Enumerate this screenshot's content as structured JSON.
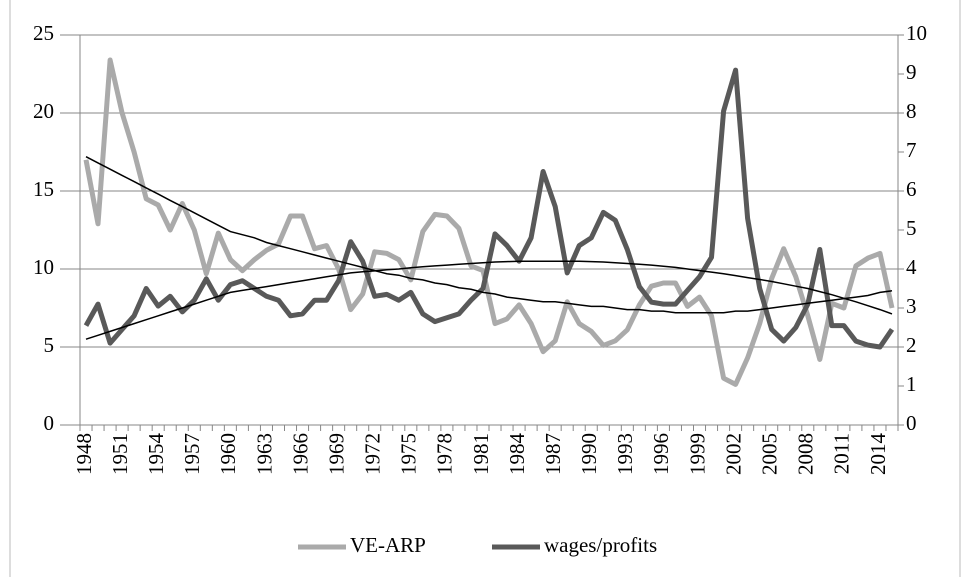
{
  "chart_data": {
    "type": "line",
    "categories": [
      "1948",
      null,
      null,
      "1951",
      null,
      null,
      "1954",
      null,
      null,
      "1957",
      null,
      null,
      "1960",
      null,
      null,
      "1963",
      null,
      null,
      "1966",
      null,
      null,
      "1969",
      null,
      null,
      "1972",
      null,
      null,
      "1975",
      null,
      null,
      "1978",
      null,
      null,
      "1981",
      null,
      null,
      "1984",
      null,
      null,
      "1987",
      null,
      null,
      "1990",
      null,
      null,
      "1993",
      null,
      null,
      "1996",
      null,
      null,
      "1999",
      null,
      null,
      "2002",
      null,
      null,
      "2005",
      null,
      null,
      "2008",
      null,
      null,
      "2011",
      null,
      null,
      "2014",
      null
    ],
    "series": [
      {
        "name": "VE-ARP",
        "color": "#aaaaaa",
        "values": [
          17,
          12.9,
          23.4,
          20,
          17.5,
          14.5,
          14.1,
          12.5,
          14.2,
          12.5,
          9.7,
          12.3,
          10.6,
          9.9,
          10.6,
          11.2,
          11.6,
          13.4,
          13.4,
          11.3,
          11.5,
          10,
          7.4,
          8.4,
          11.1,
          11,
          10.6,
          9.3,
          12.4,
          13.5,
          13.4,
          12.6,
          10.2,
          9.9,
          6.5,
          6.8,
          7.7,
          6.5,
          4.7,
          5.4,
          7.9,
          6.5,
          6,
          5.1,
          5.4,
          6.1,
          7.7,
          8.9,
          9.1,
          9.1,
          7.6,
          8.2,
          7,
          3,
          2.6,
          4.3,
          6.5,
          9.4,
          11.3,
          9.5,
          7,
          4.2,
          7.8,
          7.5,
          10.2,
          10.7,
          11,
          7.5
        ]
      },
      {
        "name": "wages/profits",
        "color": "#595959",
        "axis": "y2",
        "values": [
          2.55,
          3.1,
          2.1,
          2.45,
          2.8,
          3.5,
          3.05,
          3.3,
          2.9,
          3.2,
          3.75,
          3.2,
          3.6,
          3.7,
          3.5,
          3.3,
          3.2,
          2.8,
          2.85,
          3.2,
          3.2,
          3.7,
          4.7,
          4.2,
          3.3,
          3.35,
          3.2,
          3.4,
          2.85,
          2.65,
          2.75,
          2.85,
          3.2,
          3.5,
          4.9,
          4.6,
          4.2,
          4.8,
          6.5,
          5.6,
          3.9,
          4.6,
          4.8,
          5.45,
          5.25,
          4.5,
          3.55,
          3.15,
          3.1,
          3.1,
          3.45,
          3.8,
          4.3,
          8.05,
          9.1,
          5.3,
          3.5,
          2.45,
          2.15,
          2.5,
          3.1,
          4.5,
          2.55,
          2.55,
          2.15,
          2.05,
          2,
          2.45
        ]
      }
    ],
    "trendlines": [
      {
        "color": "#000000",
        "values": [
          17.2,
          16.8,
          16.4,
          16.0,
          15.6,
          15.2,
          14.8,
          14.4,
          14.0,
          13.6,
          13.2,
          12.8,
          12.4,
          12.2,
          12.0,
          11.7,
          11.5,
          11.3,
          11.1,
          10.9,
          10.7,
          10.5,
          10.3,
          10.1,
          9.9,
          9.7,
          9.6,
          9.4,
          9.3,
          9.1,
          9.0,
          8.8,
          8.7,
          8.5,
          8.4,
          8.2,
          8.1,
          8.0,
          7.9,
          7.9,
          7.8,
          7.7,
          7.6,
          7.6,
          7.5,
          7.4,
          7.4,
          7.3,
          7.3,
          7.2,
          7.2,
          7.2,
          7.2,
          7.2,
          7.3,
          7.3,
          7.4,
          7.5,
          7.6,
          7.7,
          7.8,
          7.9,
          8.0,
          8.1,
          8.2,
          8.3,
          8.5,
          8.6
        ]
      },
      {
        "color": "#000000",
        "axis": "y2",
        "values": [
          2.2,
          2.3,
          2.4,
          2.5,
          2.6,
          2.7,
          2.8,
          2.9,
          3.0,
          3.1,
          3.2,
          3.3,
          3.4,
          3.45,
          3.5,
          3.55,
          3.6,
          3.65,
          3.7,
          3.75,
          3.8,
          3.85,
          3.9,
          3.93,
          3.95,
          3.98,
          4.0,
          4.03,
          4.06,
          4.08,
          4.1,
          4.12,
          4.14,
          4.16,
          4.18,
          4.19,
          4.2,
          4.2,
          4.2,
          4.2,
          4.2,
          4.2,
          4.19,
          4.18,
          4.16,
          4.14,
          4.12,
          4.1,
          4.07,
          4.04,
          4.0,
          3.96,
          3.92,
          3.88,
          3.83,
          3.78,
          3.73,
          3.68,
          3.62,
          3.56,
          3.5,
          3.42,
          3.34,
          3.25,
          3.16,
          3.06,
          2.96,
          2.85
        ]
      }
    ],
    "ylim": [
      0,
      25
    ],
    "yticks": [
      0,
      5,
      10,
      15,
      20,
      25
    ],
    "y2lim": [
      0,
      10
    ],
    "y2ticks": [
      0,
      1,
      2,
      3,
      4,
      5,
      6,
      7,
      8,
      9,
      10
    ],
    "grid": true,
    "legend": "bottom"
  }
}
